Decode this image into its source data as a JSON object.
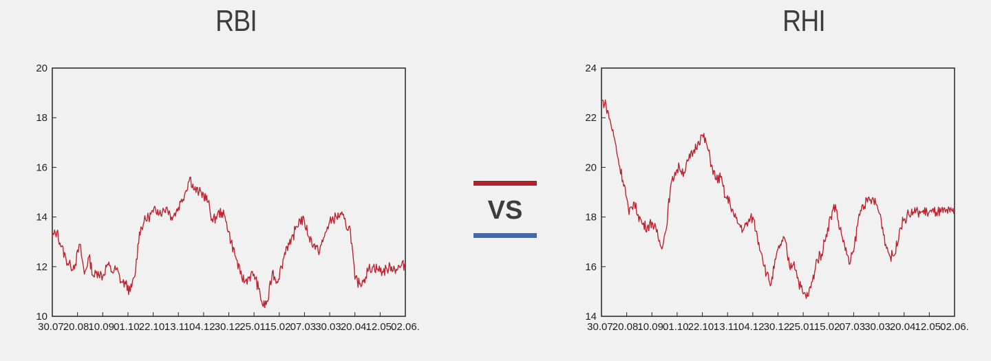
{
  "vs": {
    "label": "VS",
    "red": "#b0202a",
    "blue": "#3d6bb3"
  },
  "chart_data": [
    {
      "type": "line",
      "title": "RBI",
      "color": "#c0232f",
      "ylim": [
        10,
        20
      ],
      "yticks": [
        10,
        12,
        14,
        16,
        18,
        20
      ],
      "x_tick_labels": [
        "30.07.",
        "20.08.",
        "10.09.",
        "01.10.",
        "22.10.",
        "13.11.",
        "04.12.",
        "30.12.",
        "25.01.",
        "15.02.",
        "07.03.",
        "30.03.",
        "20.04.",
        "12.05.",
        "02.06."
      ],
      "series": [
        {
          "x": [
            0,
            4,
            8,
            12,
            16,
            20,
            24,
            28,
            32,
            36,
            40,
            44,
            48,
            52,
            56,
            60,
            64,
            68,
            72,
            76,
            80,
            84,
            88,
            92,
            96,
            100,
            104,
            108,
            112,
            116,
            120,
            124,
            128,
            132,
            136,
            140,
            144,
            148,
            152,
            156,
            160,
            164,
            168,
            172,
            176,
            180,
            184,
            188,
            192,
            196,
            200,
            204,
            208,
            212,
            216,
            220,
            224,
            228,
            232,
            236,
            240,
            244,
            248,
            252,
            256,
            260,
            264,
            268,
            272,
            276,
            280,
            284,
            288,
            292,
            296,
            300,
            304,
            308
          ],
          "y": [
            13.2,
            13.4,
            12.8,
            12.3,
            12.0,
            12.1,
            12.9,
            11.7,
            12.4,
            11.6,
            11.8,
            11.6,
            12.1,
            11.8,
            11.9,
            11.4,
            11.3,
            11.0,
            11.6,
            13.4,
            13.8,
            14.0,
            14.2,
            14.3,
            14.2,
            14.4,
            14.0,
            14.2,
            14.6,
            15.0,
            15.6,
            15.1,
            15.0,
            14.9,
            14.6,
            13.8,
            14.1,
            14.2,
            13.8,
            13.0,
            12.4,
            11.7,
            11.4,
            11.6,
            11.7,
            11.1,
            10.4,
            10.6,
            11.8,
            11.4,
            12.0,
            12.8,
            12.9,
            13.5,
            13.9,
            13.8,
            13.2,
            12.9,
            12.6,
            13.0,
            13.6,
            13.9,
            14.0,
            14.1,
            13.7,
            13.5,
            11.5,
            11.3,
            11.5,
            11.9,
            12.0,
            11.9,
            11.8,
            11.9,
            12.0,
            11.9,
            12.0,
            12.1
          ],
          "n_days": 308
        }
      ]
    },
    {
      "type": "line",
      "title": "RHI",
      "color": "#c0232f",
      "ylim": [
        14,
        24
      ],
      "yticks": [
        14,
        16,
        18,
        20,
        22,
        24
      ],
      "x_tick_labels": [
        "30.07.",
        "20.08.",
        "10.09.",
        "01.10.",
        "22.10.",
        "13.11.",
        "04.12.",
        "30.12.",
        "25.01.",
        "15.02.",
        "07.03.",
        "30.03.",
        "20.04.",
        "12.05.",
        "02.06."
      ],
      "series": [
        {
          "x": [
            0,
            4,
            8,
            12,
            16,
            20,
            24,
            28,
            32,
            36,
            40,
            44,
            48,
            52,
            56,
            60,
            64,
            68,
            72,
            76,
            80,
            84,
            88,
            92,
            96,
            100,
            104,
            108,
            112,
            116,
            120,
            124,
            128,
            132,
            136,
            140,
            144,
            148,
            152,
            156,
            160,
            164,
            168,
            172,
            176,
            180,
            184,
            188,
            192,
            196,
            200,
            204,
            208,
            212,
            216,
            220,
            224,
            228,
            232,
            236,
            240,
            244,
            248,
            252,
            256,
            260,
            264,
            268,
            272,
            276,
            280,
            284,
            288,
            292,
            296,
            300,
            304,
            308
          ],
          "y": [
            22.7,
            22.5,
            21.8,
            21.0,
            20.0,
            19.3,
            18.1,
            18.6,
            18.1,
            17.7,
            17.6,
            17.8,
            17.4,
            16.8,
            17.4,
            19.1,
            19.8,
            20.0,
            19.8,
            20.3,
            20.6,
            21.0,
            21.3,
            20.9,
            20.1,
            19.5,
            19.6,
            18.8,
            18.6,
            18.0,
            17.7,
            17.5,
            17.8,
            18.0,
            17.2,
            16.5,
            15.7,
            15.3,
            16.3,
            16.9,
            17.1,
            16.0,
            16.2,
            15.4,
            14.9,
            14.8,
            15.4,
            16.3,
            16.5,
            17.3,
            18.0,
            18.5,
            17.5,
            16.9,
            16.1,
            16.6,
            17.9,
            18.5,
            18.6,
            18.7,
            18.5,
            17.9,
            16.9,
            16.4,
            16.5,
            17.5,
            17.9,
            18.1,
            18.2,
            18.2,
            18.2,
            18.2,
            18.2,
            18.2,
            18.2,
            18.2,
            18.2,
            18.2
          ],
          "n_days": 308
        }
      ]
    }
  ]
}
